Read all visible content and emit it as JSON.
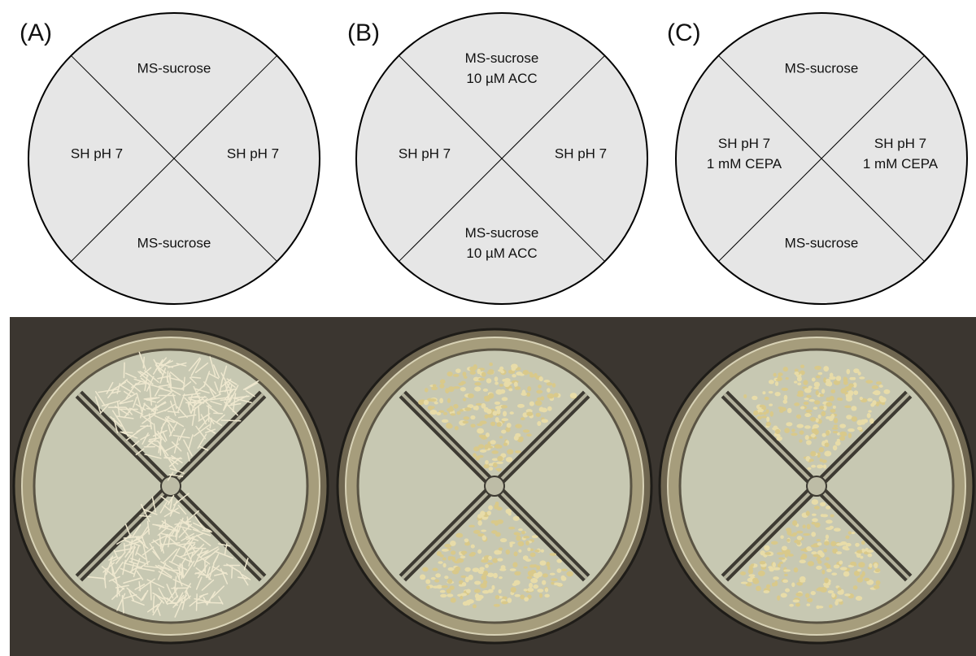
{
  "panels": [
    {
      "label": "(A)",
      "quadrants": {
        "top": [
          "MS-sucrose"
        ],
        "left": [
          "SH pH 7"
        ],
        "right": [
          "SH pH 7"
        ],
        "bottom": [
          "MS-sucrose"
        ]
      }
    },
    {
      "label": "(B)",
      "quadrants": {
        "top": [
          "MS-sucrose",
          "10 µM ACC"
        ],
        "left": [
          "SH pH 7"
        ],
        "right": [
          "SH pH 7"
        ],
        "bottom": [
          "MS-sucrose",
          "10 µM ACC"
        ]
      }
    },
    {
      "label": "(C)",
      "quadrants": {
        "top": [
          "MS-sucrose"
        ],
        "left": [
          "SH pH 7",
          "1 mM CEPA"
        ],
        "right": [
          "SH pH 7",
          "1 mM CEPA"
        ],
        "bottom": [
          "MS-sucrose"
        ]
      }
    }
  ]
}
